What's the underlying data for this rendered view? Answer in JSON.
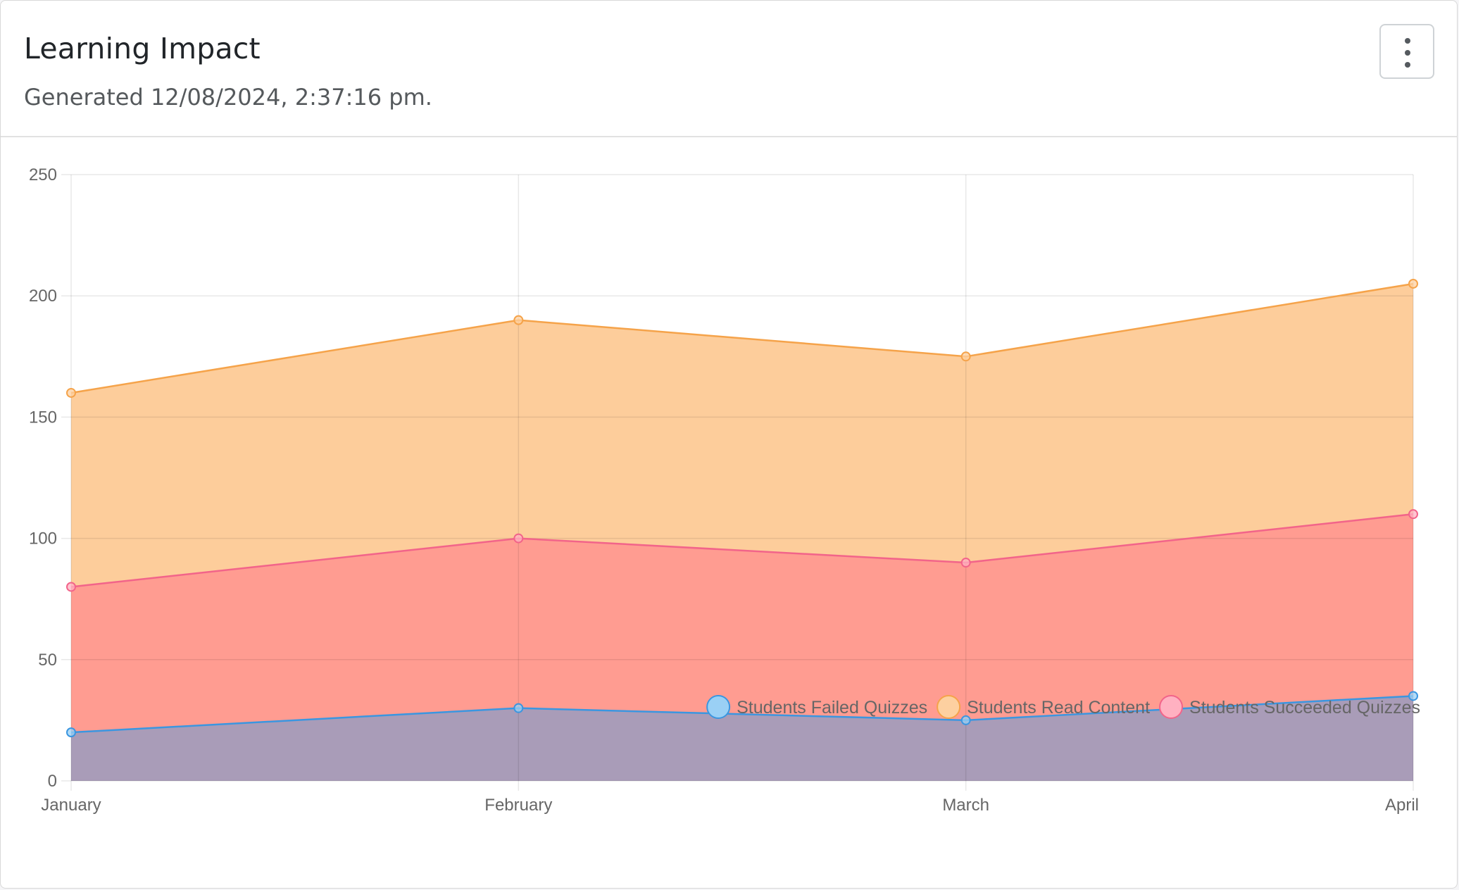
{
  "header": {
    "title": "Learning Impact",
    "subtitle": "Generated 12/08/2024, 2:37:16 pm.",
    "menu_icon": "vertical-ellipsis-icon"
  },
  "chart_data": {
    "type": "area",
    "stacked": false,
    "categories": [
      "January",
      "February",
      "March",
      "April"
    ],
    "ylim": [
      0,
      250
    ],
    "yticks": [
      0,
      50,
      100,
      150,
      200,
      250
    ],
    "grid": true,
    "legend_position": "bottom-right",
    "series": [
      {
        "name": "Students Read Content",
        "values": [
          160,
          190,
          175,
          205
        ],
        "line_color": "#f5a34a",
        "fill_color": "#fdcd9b",
        "legend_fill": "#fdd0a0",
        "legend_stroke": "#f5a34a"
      },
      {
        "name": "Students Succeeded Quizzes",
        "values": [
          80,
          100,
          90,
          110
        ],
        "line_color": "#f2648a",
        "fill_color": "#ff938f",
        "legend_fill": "#ffb1c1",
        "legend_stroke": "#f2648a"
      },
      {
        "name": "Students Failed Quizzes",
        "values": [
          20,
          30,
          25,
          35
        ],
        "line_color": "#3b96e0",
        "fill_color": "#9a9cbe",
        "legend_fill": "#9ad0f5",
        "legend_stroke": "#3b96e0"
      }
    ],
    "legend_order": [
      "Students Failed Quizzes",
      "Students Read Content",
      "Students Succeeded Quizzes"
    ]
  }
}
